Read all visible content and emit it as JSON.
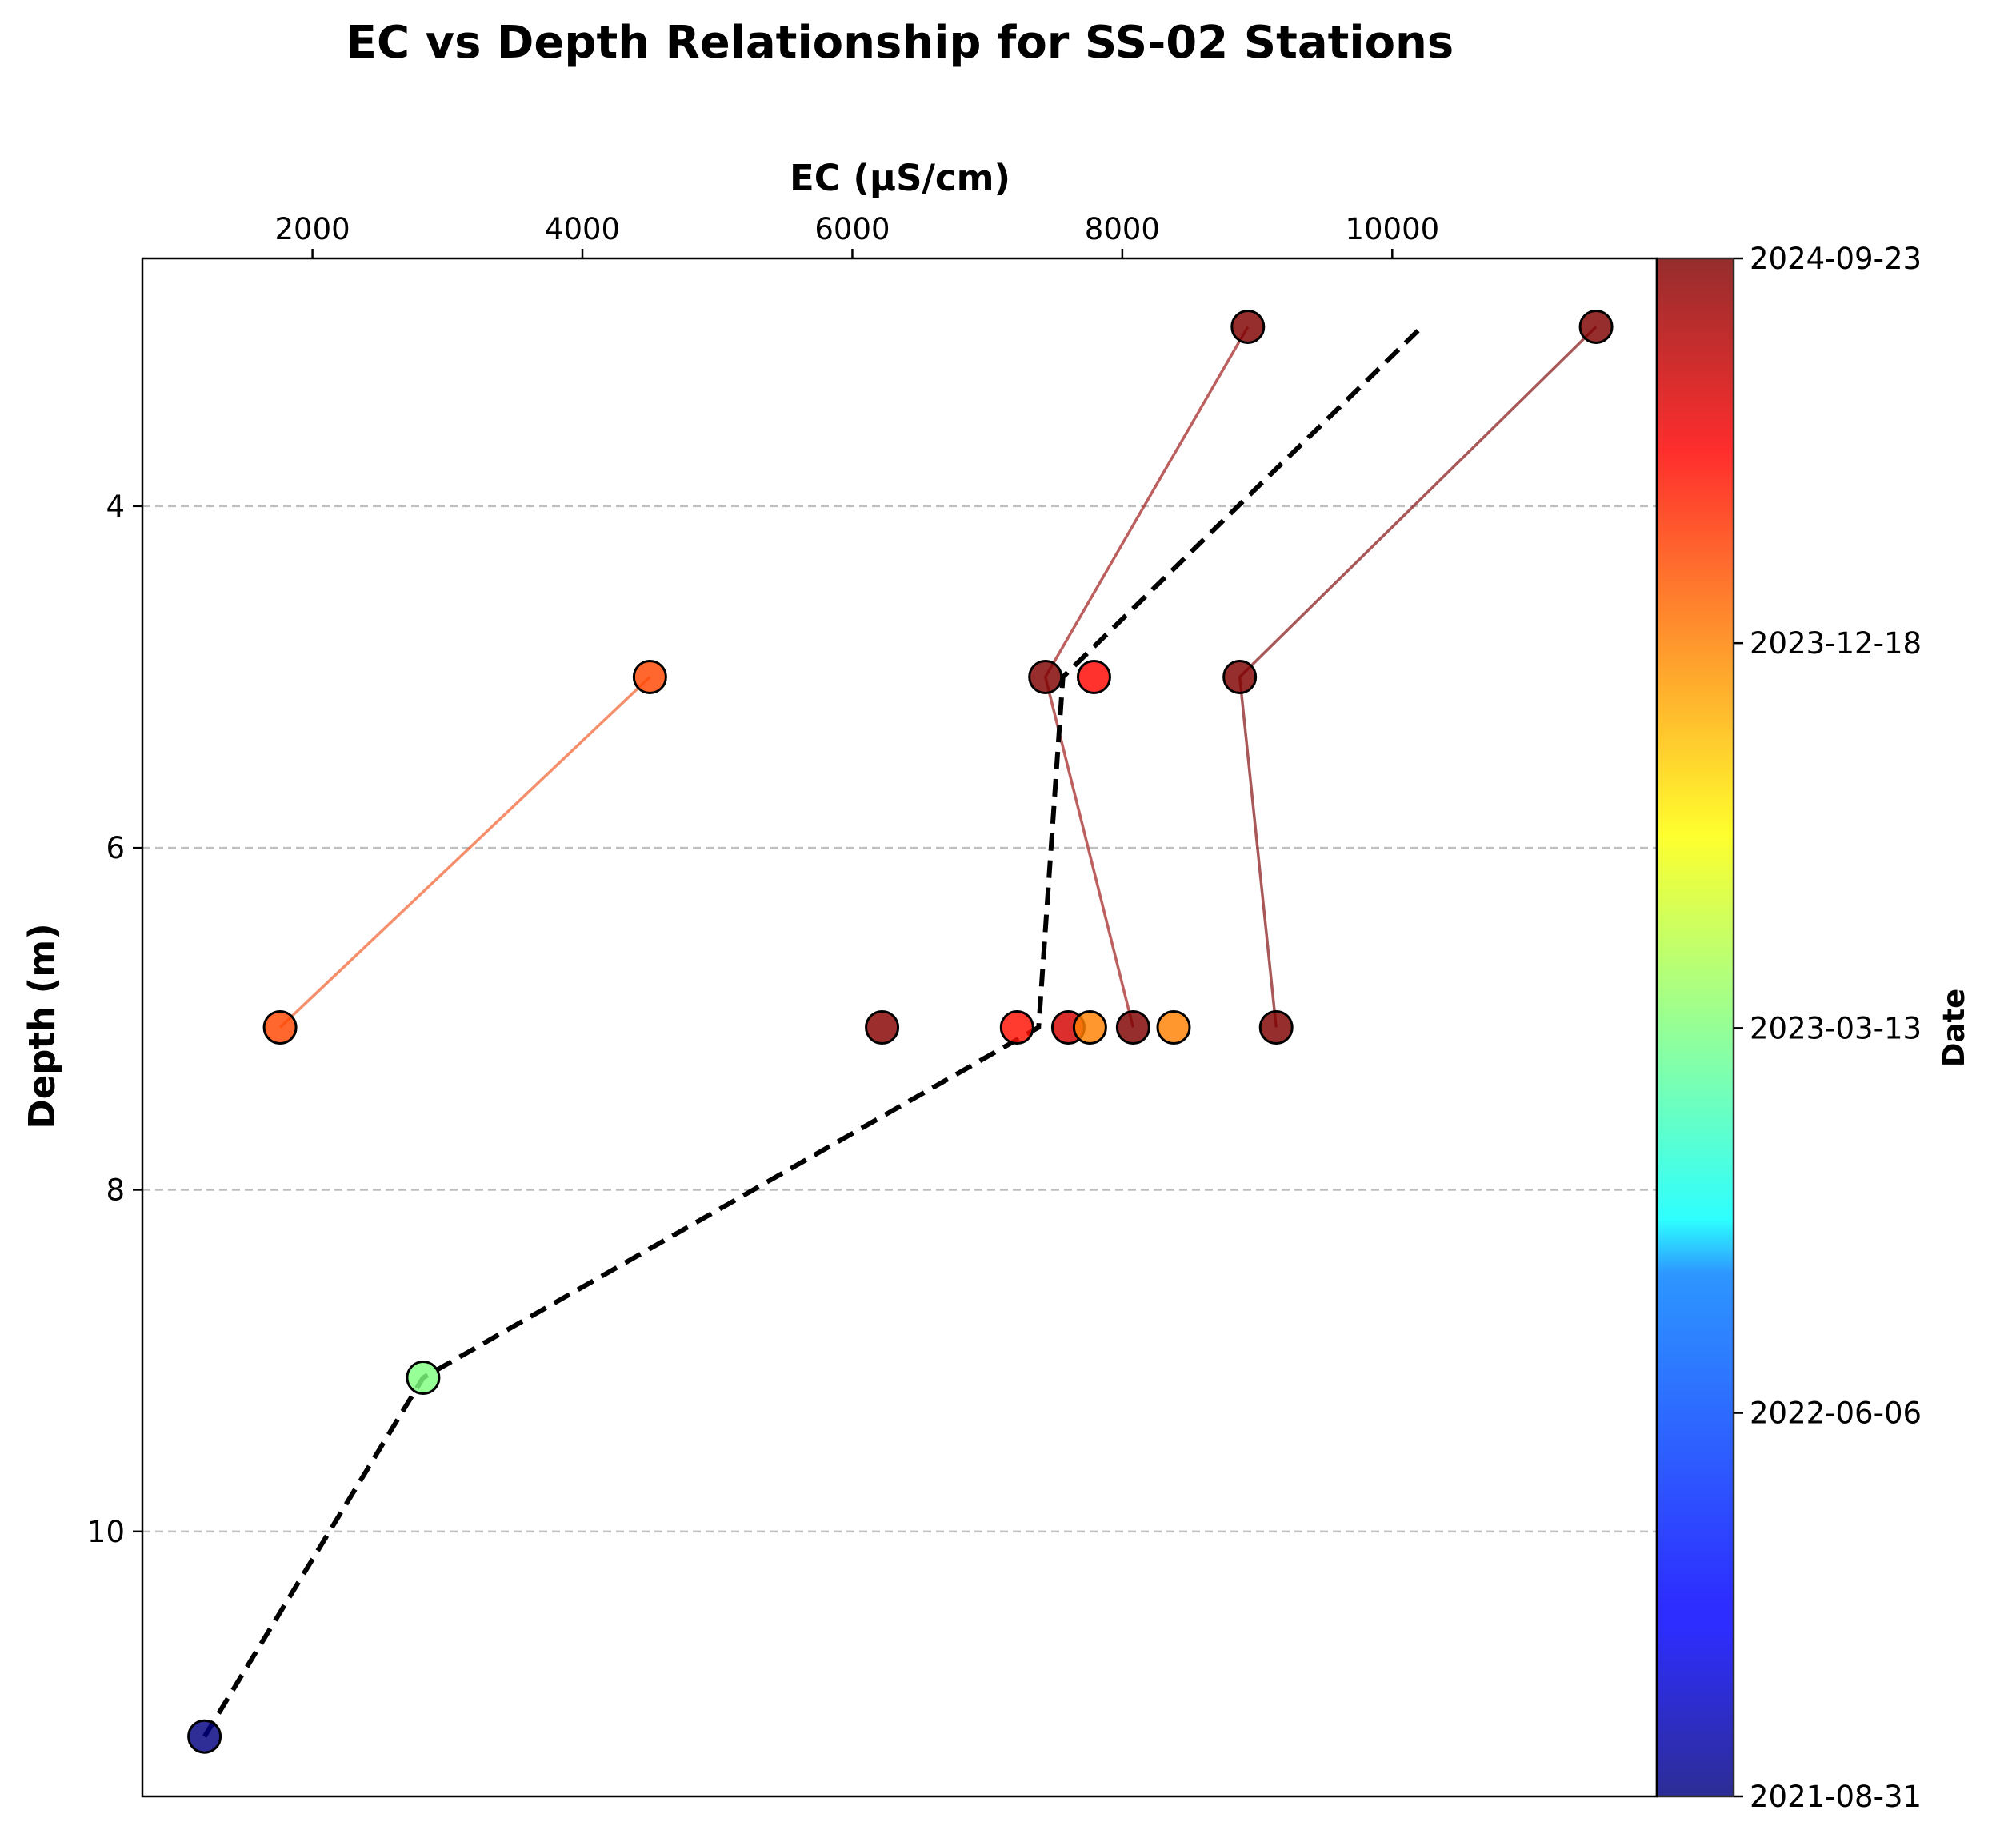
{
  "chart_data": {
    "type": "scatter",
    "title": "EC vs Depth Relationship for SS-02 Stations",
    "xlabel": "EC (µS/cm)",
    "ylabel": "Depth (m)",
    "xaxis_position": "top",
    "y_inverted": true,
    "xlim": [
      740,
      11960
    ],
    "ylim": [
      11.55,
      2.55
    ],
    "xticks": [
      2000,
      4000,
      6000,
      8000,
      10000
    ],
    "xtick_labels": [
      "2000",
      "4000",
      "6000",
      "8000",
      "10000"
    ],
    "yticks": [
      4,
      6,
      8,
      10
    ],
    "ytick_labels": [
      "4",
      "6",
      "8",
      "10"
    ],
    "grid": "horizontal dashed",
    "colorbar": {
      "label": "Date",
      "colormap": "jet",
      "min": "2021-08-31",
      "max": "2024-09-23",
      "tick_labels": [
        "2021-08-31",
        "2022-06-06",
        "2023-03-13",
        "2023-12-18",
        "2024-09-23"
      ]
    },
    "points": [
      {
        "ec": 1200,
        "depth": 11.2,
        "date": "2021-08-31"
      },
      {
        "ec": 2820,
        "depth": 9.1,
        "date": "2023-03-13"
      },
      {
        "ec": 1760,
        "depth": 7.05,
        "date": "2024-02-20"
      },
      {
        "ec": 4500,
        "depth": 5.0,
        "date": "2024-02-20"
      },
      {
        "ec": 6220,
        "depth": 7.05,
        "date": "2024-09-15"
      },
      {
        "ec": 7220,
        "depth": 7.05,
        "date": "2024-04-20"
      },
      {
        "ec": 7600,
        "depth": 7.05,
        "date": "2024-06-20"
      },
      {
        "ec": 7760,
        "depth": 7.05,
        "date": "2023-12-18"
      },
      {
        "ec": 8080,
        "depth": 7.05,
        "date": "2024-09-23"
      },
      {
        "ec": 8380,
        "depth": 7.05,
        "date": "2023-12-18"
      },
      {
        "ec": 9140,
        "depth": 7.05,
        "date": "2024-09-23"
      },
      {
        "ec": 7430,
        "depth": 5.0,
        "date": "2024-09-23"
      },
      {
        "ec": 7790,
        "depth": 5.0,
        "date": "2024-05-01"
      },
      {
        "ec": 8870,
        "depth": 5.0,
        "date": "2024-09-23"
      },
      {
        "ec": 8930,
        "depth": 2.95,
        "date": "2024-09-23"
      },
      {
        "ec": 11510,
        "depth": 2.95,
        "date": "2024-09-23"
      }
    ],
    "connections": [
      {
        "color": "#f26a3a",
        "points": [
          [
            1760,
            7.05
          ],
          [
            4500,
            5.0
          ]
        ]
      },
      {
        "color": "#a52a2a",
        "points": [
          [
            8930,
            2.95
          ],
          [
            7430,
            5.0
          ],
          [
            8080,
            7.05
          ]
        ]
      },
      {
        "color": "#8b2020",
        "points": [
          [
            11510,
            2.95
          ],
          [
            8870,
            5.0
          ],
          [
            9140,
            7.05
          ]
        ]
      }
    ],
    "trend_line": {
      "style": "black dashed",
      "points": [
        [
          1200,
          11.2
        ],
        [
          2820,
          9.1
        ],
        [
          7380,
          7.05
        ],
        [
          7560,
          5.0
        ],
        [
          10220,
          2.95
        ]
      ]
    }
  }
}
